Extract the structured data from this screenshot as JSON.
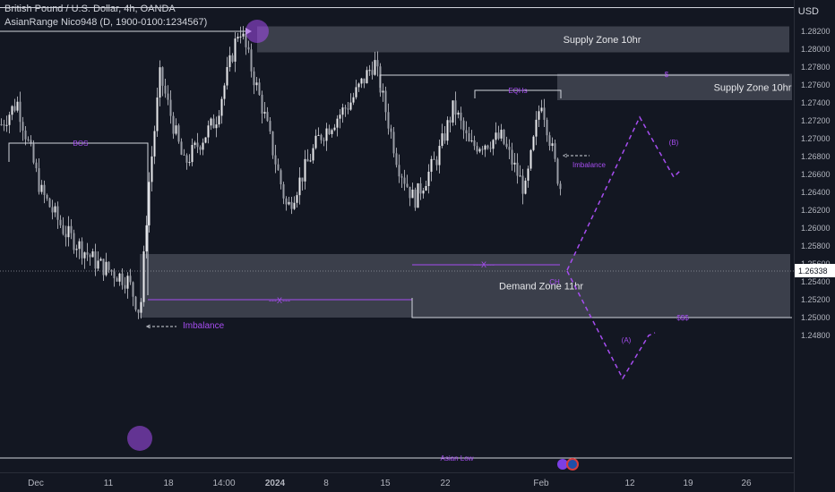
{
  "header": {
    "symbol_line": "British Pound / U.S. Dollar, 4h, OANDA",
    "indicator_line": "AsianRange Nico948 (D, 1900-0100:1234567)",
    "currency": "USD"
  },
  "colors": {
    "background": "#131722",
    "candle": "#c8cad0",
    "zone_fill": "#4a4d5a",
    "purple": "#a64df0",
    "line": "#d1d4dc",
    "axis_text": "#b2b5be"
  },
  "chart_data": {
    "type": "candlestick",
    "title": "British Pound / U.S. Dollar, 4h, OANDA",
    "ylim": [
      1.2475,
      1.2835
    ],
    "y_ticks": [
      "1.28200",
      "1.28000",
      "1.27800",
      "1.27600",
      "1.27400",
      "1.27200",
      "1.27000",
      "1.26800",
      "1.26600",
      "1.26400",
      "1.26200",
      "1.26000",
      "1.25800",
      "1.25600",
      "1.25400",
      "1.25200",
      "1.25000",
      "1.24800"
    ],
    "x_ticks": [
      "Dec",
      "11",
      "18",
      "14:00",
      "2024",
      "8",
      "15",
      "22",
      "Feb",
      "12",
      "19",
      "26"
    ],
    "last_price": "1.26338",
    "price_path": [
      {
        "x": 0.0,
        "y": 1.2715
      },
      {
        "x": 0.02,
        "y": 1.274
      },
      {
        "x": 0.05,
        "y": 1.264
      },
      {
        "x": 0.08,
        "y": 1.2595
      },
      {
        "x": 0.12,
        "y": 1.256
      },
      {
        "x": 0.16,
        "y": 1.254
      },
      {
        "x": 0.175,
        "y": 1.2503
      },
      {
        "x": 0.185,
        "y": 1.264
      },
      {
        "x": 0.2,
        "y": 1.277
      },
      {
        "x": 0.23,
        "y": 1.267
      },
      {
        "x": 0.27,
        "y": 1.272
      },
      {
        "x": 0.3,
        "y": 1.2825
      },
      {
        "x": 0.33,
        "y": 1.273
      },
      {
        "x": 0.36,
        "y": 1.262
      },
      {
        "x": 0.4,
        "y": 1.27
      },
      {
        "x": 0.44,
        "y": 1.274
      },
      {
        "x": 0.47,
        "y": 1.2785
      },
      {
        "x": 0.5,
        "y": 1.267
      },
      {
        "x": 0.52,
        "y": 1.263
      },
      {
        "x": 0.55,
        "y": 1.268
      },
      {
        "x": 0.57,
        "y": 1.2735
      },
      {
        "x": 0.59,
        "y": 1.269
      },
      {
        "x": 0.63,
        "y": 1.27
      },
      {
        "x": 0.66,
        "y": 1.264
      },
      {
        "x": 0.68,
        "y": 1.2745
      },
      {
        "x": 0.7,
        "y": 1.266
      },
      {
        "x": 0.71,
        "y": 1.2625
      }
    ],
    "zones": [
      {
        "label": "Supply Zone 10hr",
        "top": 1.28245,
        "bottom": 1.27955
      },
      {
        "label": "Supply Zone 10hr",
        "top": 1.27715,
        "bottom": 1.2742
      },
      {
        "label": "Demand Zone 11hr",
        "top": 1.257,
        "bottom": 1.2499
      }
    ],
    "annotations": {
      "bos": "BOS",
      "eqhs": "EQHs",
      "imbalance_upper": "Imbalance",
      "imbalance_lower": "Imbalance",
      "dollar_single": "$",
      "dollar_triple": "$$$",
      "x_mark": "X",
      "choch": "CH",
      "wave_a": "(A)",
      "wave_b": "(B)",
      "asian_low": "Asian Low"
    }
  }
}
